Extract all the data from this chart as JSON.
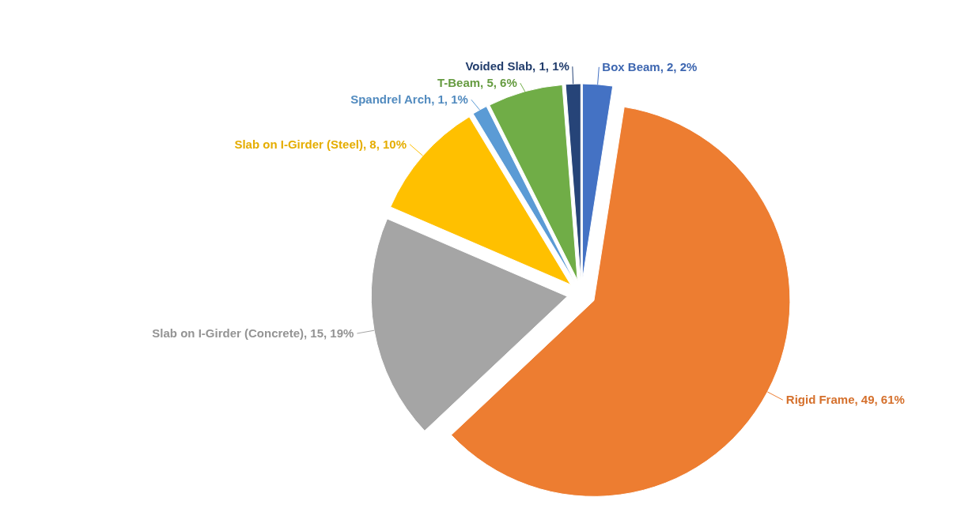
{
  "chart_data": {
    "type": "pie",
    "categories": [
      "Box Beam",
      "Rigid Frame",
      "Slab on I-Girder (Concrete)",
      "Slab on I-Girder (Steel)",
      "Spandrel Arch",
      "T-Beam",
      "Voided Slab"
    ],
    "values": [
      2,
      49,
      15,
      8,
      1,
      5,
      1
    ],
    "value_labels": [
      "2, 2%",
      "49, 61%",
      "15, 19%",
      "8, 10%",
      "1, 1%",
      "5, 6%",
      "1, 1%"
    ],
    "colors": [
      "#4472c4",
      "#ed7d31",
      "#a5a5a5",
      "#ffc000",
      "#5b9bd5",
      "#70ad47",
      "#264478"
    ]
  }
}
